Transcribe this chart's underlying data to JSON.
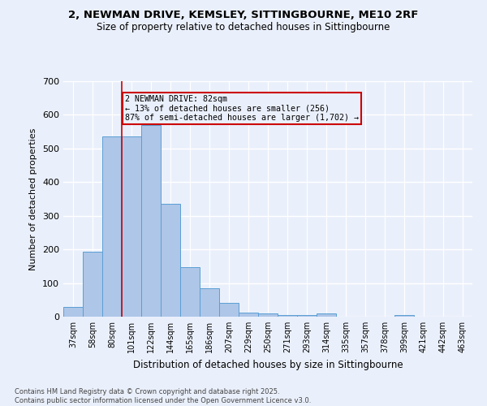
{
  "title_line1": "2, NEWMAN DRIVE, KEMSLEY, SITTINGBOURNE, ME10 2RF",
  "title_line2": "Size of property relative to detached houses in Sittingbourne",
  "xlabel": "Distribution of detached houses by size in Sittingbourne",
  "ylabel": "Number of detached properties",
  "categories": [
    "37sqm",
    "58sqm",
    "80sqm",
    "101sqm",
    "122sqm",
    "144sqm",
    "165sqm",
    "186sqm",
    "207sqm",
    "229sqm",
    "250sqm",
    "271sqm",
    "293sqm",
    "314sqm",
    "335sqm",
    "357sqm",
    "378sqm",
    "399sqm",
    "421sqm",
    "442sqm",
    "463sqm"
  ],
  "values": [
    30,
    192,
    535,
    535,
    570,
    335,
    148,
    85,
    42,
    12,
    10,
    6,
    4,
    10,
    0,
    0,
    0,
    5,
    0,
    0,
    0
  ],
  "bar_color": "#aec6e8",
  "bar_edge_color": "#5a9fd4",
  "vline_color": "#cc0000",
  "vline_position": 2.5,
  "annotation_line1": "2 NEWMAN DRIVE: 82sqm",
  "annotation_line2": "← 13% of detached houses are smaller (256)",
  "annotation_line3": "87% of semi-detached houses are larger (1,702) →",
  "annotation_box_color": "#cc0000",
  "ylim": [
    0,
    700
  ],
  "yticks": [
    0,
    100,
    200,
    300,
    400,
    500,
    600,
    700
  ],
  "background_color": "#eaf0fb",
  "grid_color": "#ffffff",
  "footer_line1": "Contains HM Land Registry data © Crown copyright and database right 2025.",
  "footer_line2": "Contains public sector information licensed under the Open Government Licence v3.0."
}
